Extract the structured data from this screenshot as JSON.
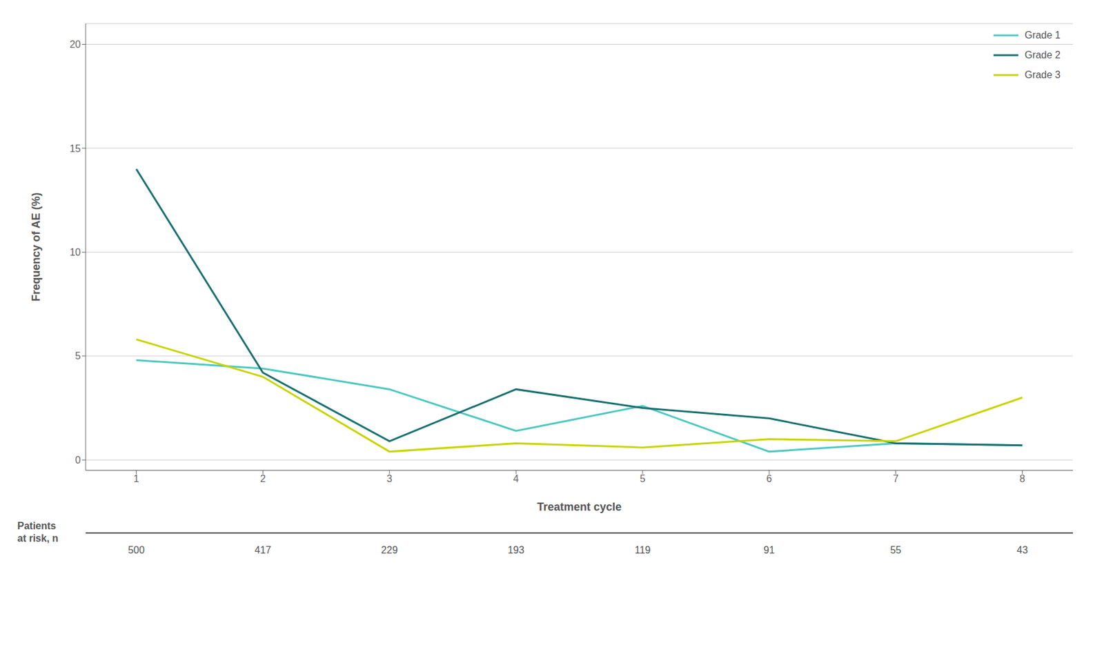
{
  "chart_data": {
    "type": "line",
    "xlabel": "Treatment cycle",
    "ylabel": "Frequency of AE (%)",
    "x": [
      1,
      2,
      3,
      4,
      5,
      6,
      7,
      8
    ],
    "series": [
      {
        "name": "Grade 1",
        "color": "#4DC8C0",
        "values": [
          4.8,
          4.4,
          3.4,
          1.4,
          2.6,
          0.4,
          0.8,
          0.7
        ]
      },
      {
        "name": "Grade 2",
        "color": "#1A7070",
        "values": [
          14.0,
          4.2,
          0.9,
          3.4,
          2.5,
          2.0,
          0.8,
          0.7
        ]
      },
      {
        "name": "Grade 3",
        "color": "#C8D400",
        "values": [
          5.8,
          4.0,
          0.4,
          0.8,
          0.6,
          1.0,
          0.9,
          3.0
        ]
      }
    ],
    "xlim": [
      0.6,
      8.4
    ],
    "xticks": [
      1,
      2,
      3,
      4,
      5,
      6,
      7,
      8
    ],
    "ylim": [
      -0.5,
      21
    ],
    "yticks": [
      0,
      5,
      10,
      15,
      20
    ],
    "grid": true,
    "legend": "upper right",
    "patients_at_risk": {
      "label": "Patients\nat risk, n",
      "values": [
        500,
        417,
        229,
        193,
        119,
        91,
        55,
        43
      ]
    }
  }
}
